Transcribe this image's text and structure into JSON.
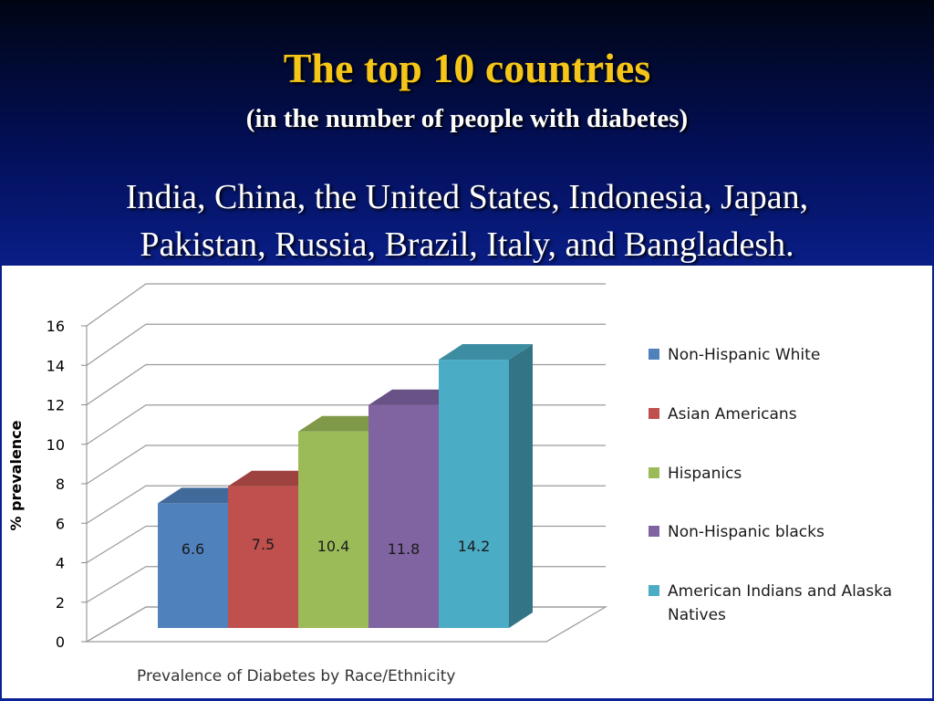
{
  "slide": {
    "title": "The top 10 countries",
    "subtitle": "(in the number of people with diabetes)",
    "body_line1": "India, China, the United States, Indonesia, Japan,",
    "body_line2": "Pakistan, Russia, Brazil, Italy, and Bangladesh."
  },
  "chart_data": {
    "type": "bar",
    "title": "",
    "xlabel": "Prevalence of Diabetes by Race/Ethnicity",
    "ylabel": "% prevalence",
    "ylim": [
      0,
      16
    ],
    "yticks": [
      0,
      2,
      4,
      6,
      8,
      10,
      12,
      14,
      16
    ],
    "grid": true,
    "legend_position": "right",
    "series": [
      {
        "name": "Non-Hispanic White",
        "value": 6.6,
        "color": "#4f81bd"
      },
      {
        "name": "Asian Americans",
        "value": 7.5,
        "color": "#c0504d"
      },
      {
        "name": "Hispanics",
        "value": 10.4,
        "color": "#9bbb59"
      },
      {
        "name": "Non-Hispanic blacks",
        "value": 11.8,
        "color": "#8064a2"
      },
      {
        "name": "American Indians and Alaska Natives",
        "value": 14.2,
        "color": "#4bacc6"
      }
    ],
    "data_labels": [
      "6.6",
      "7.5",
      "10.4",
      "11.8",
      "14.2"
    ]
  }
}
